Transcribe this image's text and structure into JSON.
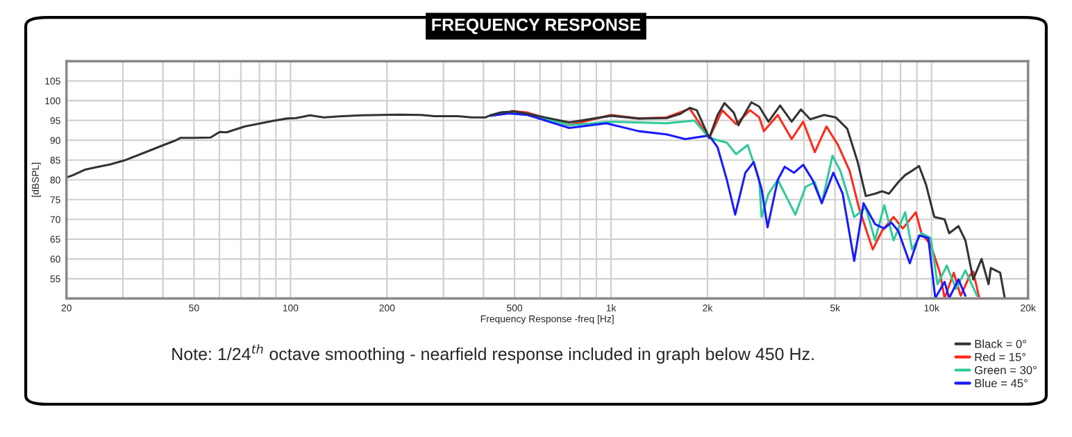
{
  "chart_data": {
    "type": "line",
    "title": "FREQUENCY RESPONSE",
    "xlabel": "Frequency Response -freq [Hz]",
    "ylabel": "[dBSPL]",
    "annotations": [
      "Note: 1/24$^{th}$ octave smoothing - nearfield response included in graph below 450 Hz."
    ],
    "log": "x",
    "grid": true,
    "legend": "bottom right",
    "line_style": "solid",
    "xlim": [
      20,
      20000
    ],
    "ylim": [
      50,
      110
    ],
    "xticks": [
      20,
      {
        "value": 30,
        "label": null
      },
      {
        "value": 40,
        "label": null
      },
      50,
      {
        "value": 60,
        "label": null
      },
      {
        "value": 70,
        "label": null
      },
      {
        "value": 80,
        "label": null
      },
      {
        "value": 90,
        "label": null
      },
      100,
      200,
      {
        "value": 300,
        "label": null
      },
      {
        "value": 400,
        "label": null
      },
      500,
      {
        "value": 600,
        "label": null
      },
      {
        "value": 700,
        "label": null
      },
      {
        "value": 800,
        "label": null
      },
      {
        "value": 900,
        "label": null
      },
      {
        "value": 1000,
        "label": "1k"
      },
      {
        "value": 2000,
        "label": "2k"
      },
      {
        "value": 3000,
        "label": null
      },
      {
        "value": 4000,
        "label": null
      },
      {
        "value": 5000,
        "label": "5k"
      },
      {
        "value": 6000,
        "label": null
      },
      {
        "value": 7000,
        "label": null
      },
      {
        "value": 8000,
        "label": null
      },
      {
        "value": 9000,
        "label": null
      },
      {
        "value": 10000,
        "label": "10k"
      },
      {
        "value": 20000,
        "label": "20k"
      }
    ],
    "yticks": [
      55,
      60,
      65,
      70,
      75,
      80,
      85,
      90,
      95,
      100,
      105
    ],
    "series": [
      {
        "name": "Red = 15°",
        "color": "#ff2a1a",
        "x": [
          490,
          549,
          741,
          1000,
          1221,
          1491,
          1761,
          2025,
          2223,
          2456,
          2714,
          2900,
          2999,
          3313,
          3661,
          3978,
          4323,
          4699,
          5107,
          5549,
          5932,
          6339,
          6555,
          7006,
          7612,
          8137,
          8932,
          9295,
          9934,
          10620,
          10980,
          11730,
          12330,
          13180,
          13490,
          14090
        ],
        "values": [
          97.4,
          97.0,
          93.8,
          96.4,
          95.5,
          95.8,
          98.0,
          90.6,
          97.6,
          94.1,
          97.6,
          95.8,
          92.3,
          96.4,
          90.3,
          94.7,
          87.0,
          93.5,
          88.8,
          82.3,
          73.0,
          65.9,
          62.4,
          67.1,
          70.6,
          67.7,
          71.8,
          66.5,
          63.6,
          56.5,
          50.1,
          56.5,
          50.7,
          55.9,
          56.8,
          50.1
        ]
      },
      {
        "name": "Green = 30°",
        "color": "#2ec99a",
        "x": [
          420,
          460,
          549,
          741,
          1000,
          1491,
          1820,
          2025,
          2298,
          2456,
          2669,
          2900,
          2949,
          3100,
          3313,
          3759,
          4045,
          4323,
          4545,
          4908,
          5192,
          5458,
          5738,
          6234,
          6664,
          7121,
          7612,
          8273,
          8697,
          9295,
          9934,
          10440,
          11160,
          11930,
          12750,
          13860
        ],
        "values": [
          96.3,
          97.2,
          96.7,
          93.8,
          94.7,
          94.3,
          95.0,
          90.6,
          89.4,
          86.5,
          88.8,
          80.0,
          70.6,
          76.5,
          80.0,
          71.2,
          78.2,
          79.4,
          74.1,
          86.1,
          82.3,
          76.5,
          70.6,
          73.0,
          64.7,
          73.6,
          64.7,
          71.8,
          62.4,
          66.5,
          65.3,
          53.6,
          58.3,
          52.4,
          57.1,
          50.7
        ]
      },
      {
        "name": "Blue = 45°",
        "color": "#1a1aff",
        "x": [
          420,
          480,
          549,
          741,
          967,
          1221,
          1491,
          1703,
          2025,
          2150,
          2298,
          2440,
          2625,
          2787,
          2949,
          3079,
          3313,
          3482,
          3722,
          3978,
          4252,
          4545,
          4938,
          5280,
          5738,
          6134,
          6664,
          7121,
          7485,
          7870,
          8553,
          9141,
          9770,
          10270,
          10980,
          11350,
          12130,
          12750
        ],
        "values": [
          96.2,
          96.8,
          96.4,
          93.1,
          94.3,
          92.3,
          91.5,
          90.3,
          91.2,
          88.2,
          80.0,
          71.2,
          81.8,
          84.5,
          77.7,
          68.0,
          80.0,
          83.3,
          81.8,
          83.8,
          80.0,
          74.1,
          81.8,
          76.5,
          59.5,
          74.1,
          68.8,
          67.7,
          69.2,
          67.1,
          58.9,
          65.9,
          65.3,
          50.1,
          54.2,
          50.1,
          54.8,
          50.7
        ]
      },
      {
        "name": "Black = 0°",
        "color": "#333333",
        "x": [
          20,
          21,
          22.9,
          24.8,
          27.4,
          30.3,
          34.6,
          39.6,
          43.9,
          45.3,
          50,
          56.3,
          60.1,
          63.2,
          72.1,
          79.7,
          88.2,
          97.4,
          104,
          115,
          127,
          145,
          166,
          190,
          217,
          256,
          282,
          333,
          368,
          406,
          420,
          452,
          497,
          549,
          741,
          1000,
          1221,
          1491,
          1647,
          1761,
          1851,
          2025,
          2150,
          2259,
          2415,
          2497,
          2625,
          2741,
          2900,
          3100,
          3369,
          3661,
          3913,
          4182,
          4620,
          5022,
          5458,
          5873,
          6234,
          6664,
          7006,
          7363,
          7870,
          8273,
          8697,
          9141,
          9610,
          10200,
          10980,
          11350,
          12130,
          12750,
          13490,
          14320,
          15060,
          15310,
          16370,
          16920
        ],
        "values": [
          80.6,
          81.2,
          82.6,
          83.2,
          83.9,
          84.9,
          86.7,
          88.6,
          90.0,
          90.6,
          90.6,
          90.7,
          92.1,
          92.0,
          93.5,
          94.2,
          94.9,
          95.5,
          95.6,
          96.3,
          95.8,
          96.1,
          96.3,
          96.4,
          96.5,
          96.4,
          96.1,
          96.1,
          95.8,
          95.8,
          96.3,
          97.0,
          97.3,
          96.7,
          94.5,
          96.2,
          95.5,
          95.6,
          96.7,
          98.2,
          97.6,
          90.6,
          96.4,
          99.4,
          97.0,
          93.8,
          97.0,
          99.6,
          98.5,
          94.7,
          98.8,
          94.7,
          97.8,
          95.3,
          96.4,
          95.8,
          92.9,
          84.7,
          75.9,
          76.5,
          77.1,
          76.5,
          79.4,
          81.2,
          82.3,
          83.5,
          78.8,
          70.6,
          70.0,
          66.5,
          68.3,
          64.7,
          54.8,
          60.0,
          53.6,
          57.7,
          56.5,
          50.1
        ]
      }
    ]
  }
}
